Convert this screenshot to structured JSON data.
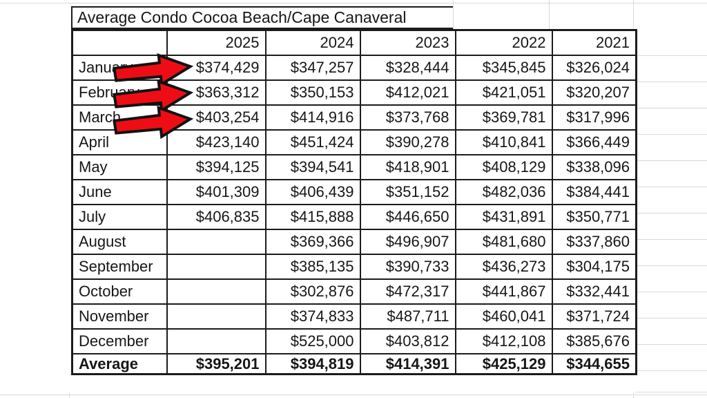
{
  "sheet": {
    "title": "Average Condo Cocoa Beach/Cape Canaveral",
    "columns": [
      "",
      "2025",
      "2024",
      "2023",
      "2022",
      "2021"
    ],
    "rows": [
      [
        "January",
        "$374,429",
        "$347,257",
        "$328,444",
        "$345,845",
        "$326,024"
      ],
      [
        "February",
        "$363,312",
        "$350,153",
        "$412,021",
        "$421,051",
        "$320,207"
      ],
      [
        "March",
        "$403,254",
        "$414,916",
        "$373,768",
        "$369,781",
        "$317,996"
      ],
      [
        "April",
        "$423,140",
        "$451,424",
        "$390,278",
        "$410,841",
        "$366,449"
      ],
      [
        "May",
        "$394,125",
        "$394,541",
        "$418,901",
        "$408,129",
        "$338,096"
      ],
      [
        "June",
        "$401,309",
        "$406,439",
        "$351,152",
        "$482,036",
        "$384,441"
      ],
      [
        "July",
        "$406,835",
        "$415,888",
        "$446,650",
        "$431,891",
        "$350,771"
      ],
      [
        "August",
        "",
        "$369,366",
        "$496,907",
        "$481,680",
        "$337,860"
      ],
      [
        "September",
        "",
        "$385,135",
        "$390,733",
        "$436,273",
        "$304,175"
      ],
      [
        "October",
        "",
        "$302,876",
        "$472,317",
        "$441,867",
        "$332,441"
      ],
      [
        "November",
        "",
        "$374,833",
        "$487,711",
        "$460,041",
        "$371,724"
      ],
      [
        "December",
        "",
        "$525,000",
        "$403,812",
        "$412,108",
        "$385,676"
      ]
    ],
    "average_row": [
      "Average",
      "$395,201",
      "$394,819",
      "$414,391",
      "$425,129",
      "$344,655"
    ],
    "annotations": {
      "arrow_rows": [
        "January",
        "February",
        "March"
      ],
      "arrow_fill": "#ee0d14",
      "arrow_outline": "#121212"
    }
  }
}
